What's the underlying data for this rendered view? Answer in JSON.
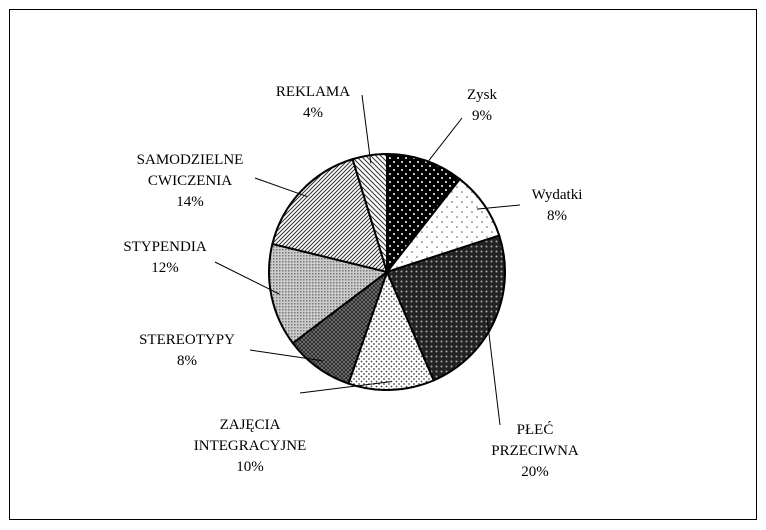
{
  "chart_data": {
    "type": "pie",
    "categories": [
      "Zysk",
      "Wydatki",
      "PŁEĆ PRZECIWNA",
      "ZAJĘCIA INTEGRACYJNE",
      "STEREOTYPY",
      "STYPENDIA",
      "SAMODZIELNE CWICZENIA",
      "REKLAMA"
    ],
    "values": [
      9,
      8,
      20,
      10,
      8,
      12,
      14,
      4
    ],
    "value_labels": [
      "9%",
      "8%",
      "20%",
      "10%",
      "8%",
      "12%",
      "14%",
      "4%"
    ]
  }
}
